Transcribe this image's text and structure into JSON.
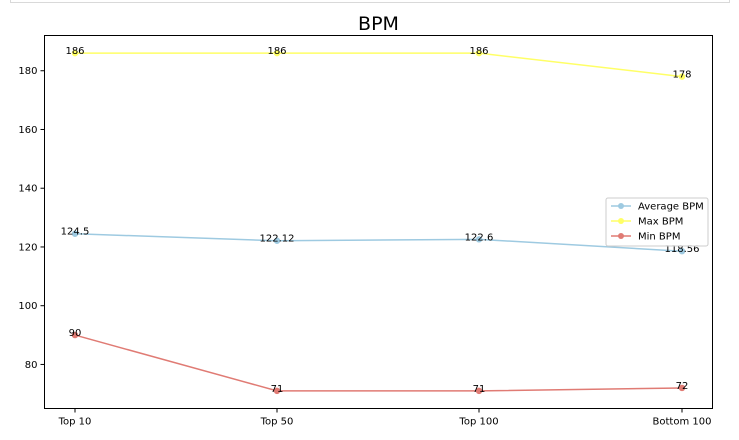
{
  "chart_data": {
    "type": "line",
    "title": "BPM",
    "xlabel": "",
    "ylabel": "",
    "categories": [
      "Top 10",
      "Top 50",
      "Top 100",
      "Bottom 100"
    ],
    "ylim": [
      65,
      192
    ],
    "yticks": [
      80,
      100,
      120,
      140,
      160,
      180
    ],
    "grid": false,
    "legend_position": "right",
    "series": [
      {
        "name": "Average BPM",
        "values": [
          124.5,
          122.12,
          122.6,
          118.56
        ],
        "labels": [
          "124.5",
          "122.12",
          "122.6",
          "118.56"
        ],
        "color": "#9ecae1"
      },
      {
        "name": "Max BPM",
        "values": [
          186,
          186,
          186,
          178
        ],
        "labels": [
          "186",
          "186",
          "186",
          "178"
        ],
        "color": "#ffff66"
      },
      {
        "name": "Min BPM",
        "values": [
          90,
          71,
          71,
          72
        ],
        "labels": [
          "90",
          "71",
          "71",
          "72"
        ],
        "color": "#e07b74"
      }
    ]
  }
}
